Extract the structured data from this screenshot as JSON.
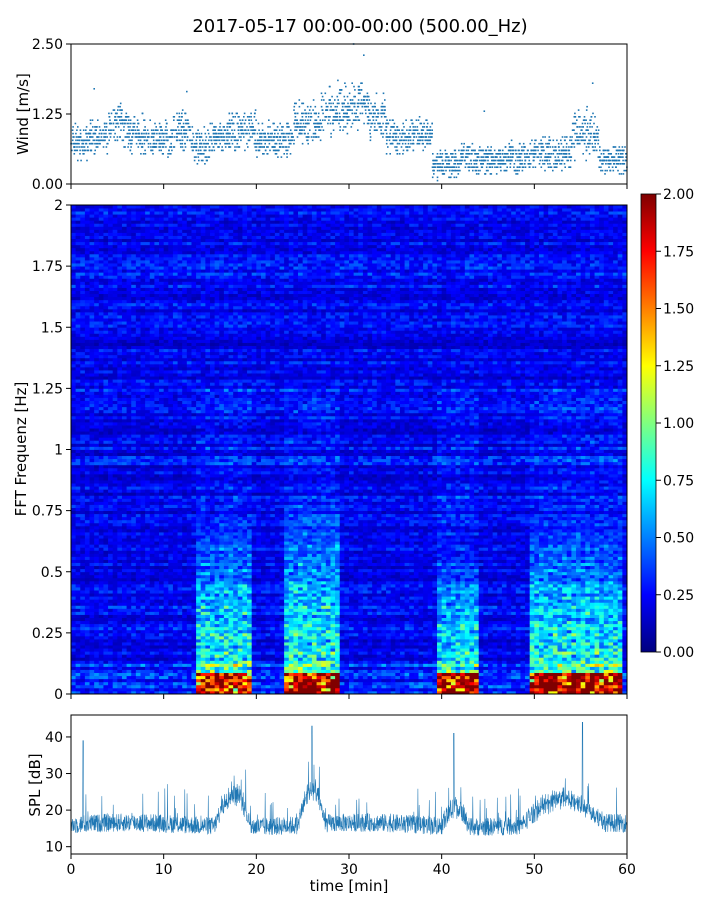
{
  "title": "2017-05-17 00:00-00:00 (500.00_Hz)",
  "chart_data": [
    {
      "type": "scatter",
      "panel": "wind",
      "ylabel": "Wind [m/s]",
      "ylim": [
        0,
        2.5
      ],
      "yticks": [
        0.0,
        1.25,
        2.5
      ],
      "ytick_labels": [
        "0.00",
        "1.25",
        "2.50"
      ],
      "xlim": [
        0,
        60
      ],
      "point_color": "#1f77b4",
      "segments": [
        {
          "x": [
            0,
            2
          ],
          "mean": 0.75,
          "spread": 0.35
        },
        {
          "x": [
            2,
            4
          ],
          "mean": 0.85,
          "spread": 0.35
        },
        {
          "x": [
            4,
            6
          ],
          "mean": 1.05,
          "spread": 0.45
        },
        {
          "x": [
            6,
            8
          ],
          "mean": 0.9,
          "spread": 0.4
        },
        {
          "x": [
            8,
            11
          ],
          "mean": 0.8,
          "spread": 0.35
        },
        {
          "x": [
            11,
            13
          ],
          "mean": 0.95,
          "spread": 0.4
        },
        {
          "x": [
            13,
            15
          ],
          "mean": 0.7,
          "spread": 0.35
        },
        {
          "x": [
            15,
            17
          ],
          "mean": 0.85,
          "spread": 0.3
        },
        {
          "x": [
            17,
            20
          ],
          "mean": 0.95,
          "spread": 0.4
        },
        {
          "x": [
            20,
            24
          ],
          "mean": 0.8,
          "spread": 0.35
        },
        {
          "x": [
            24,
            27
          ],
          "mean": 1.1,
          "spread": 0.45
        },
        {
          "x": [
            27,
            30
          ],
          "mean": 1.3,
          "spread": 0.5
        },
        {
          "x": [
            30,
            32
          ],
          "mean": 1.4,
          "spread": 0.5
        },
        {
          "x": [
            32,
            34
          ],
          "mean": 1.2,
          "spread": 0.45
        },
        {
          "x": [
            34,
            37
          ],
          "mean": 0.85,
          "spread": 0.35
        },
        {
          "x": [
            37,
            39
          ],
          "mean": 0.9,
          "spread": 0.3
        },
        {
          "x": [
            39,
            42
          ],
          "mean": 0.35,
          "spread": 0.3
        },
        {
          "x": [
            42,
            47
          ],
          "mean": 0.45,
          "spread": 0.3
        },
        {
          "x": [
            47,
            50
          ],
          "mean": 0.5,
          "spread": 0.35
        },
        {
          "x": [
            50,
            54
          ],
          "mean": 0.55,
          "spread": 0.35
        },
        {
          "x": [
            54,
            57
          ],
          "mean": 0.9,
          "spread": 0.5
        },
        {
          "x": [
            57,
            60
          ],
          "mean": 0.45,
          "spread": 0.3
        }
      ]
    },
    {
      "type": "heatmap",
      "panel": "spectrogram",
      "ylabel": "FFT Frequenz [Hz]",
      "ylim": [
        0,
        2
      ],
      "yticks": [
        0,
        0.25,
        0.5,
        0.75,
        1,
        1.25,
        1.5,
        1.75,
        2
      ],
      "ytick_labels": [
        "0",
        "0.25",
        "0.5",
        "0.75",
        "1",
        "1.25",
        "1.5",
        "1.75",
        "2"
      ],
      "xlim": [
        0,
        60
      ],
      "colormap": "jet",
      "colorbar": {
        "range": [
          0,
          2
        ],
        "ticks": [
          0.0,
          0.25,
          0.5,
          0.75,
          1.0,
          1.25,
          1.5,
          1.75,
          2.0
        ],
        "tick_labels": [
          "0.00",
          "0.25",
          "0.50",
          "0.75",
          "1.00",
          "1.25",
          "1.50",
          "1.75",
          "2.00"
        ]
      },
      "time_bins": 120,
      "freq_bins": 160,
      "background_level": 0.22,
      "events": [
        {
          "t0": 13.5,
          "t1": 19.5,
          "fmax": 0.7,
          "peak": 1.7
        },
        {
          "t0": 23.0,
          "t1": 29.0,
          "fmax": 0.78,
          "peak": 2.0
        },
        {
          "t0": 39.5,
          "t1": 44.0,
          "fmax": 0.55,
          "peak": 2.0
        },
        {
          "t0": 49.5,
          "t1": 59.5,
          "fmax": 0.7,
          "peak": 2.0
        }
      ]
    },
    {
      "type": "line",
      "panel": "spl",
      "ylabel": "SPL [dB]",
      "xlabel": "time [min]",
      "xlim": [
        0,
        60
      ],
      "ylim": [
        8,
        46
      ],
      "yticks": [
        10,
        20,
        30,
        40
      ],
      "ytick_labels": [
        "10",
        "20",
        "30",
        "40"
      ],
      "xticks": [
        0,
        10,
        20,
        30,
        40,
        50,
        60
      ],
      "xtick_labels": [
        "0",
        "10",
        "20",
        "30",
        "40",
        "50",
        "60"
      ],
      "line_color": "#1f77b4",
      "baseline_db": 16,
      "noise_db": 2.5,
      "events": [
        {
          "t0": 15.5,
          "t1": 19.5,
          "level": 27
        },
        {
          "t0": 24.5,
          "t1": 27.5,
          "level": 27
        },
        {
          "t0": 40.0,
          "t1": 43.0,
          "level": 22
        },
        {
          "t0": 48.5,
          "t1": 57.5,
          "level": 24
        }
      ],
      "peaks": [
        {
          "t": 1.3,
          "db": 39
        },
        {
          "t": 26.0,
          "db": 43
        },
        {
          "t": 41.3,
          "db": 41
        },
        {
          "t": 55.2,
          "db": 44
        }
      ]
    }
  ]
}
